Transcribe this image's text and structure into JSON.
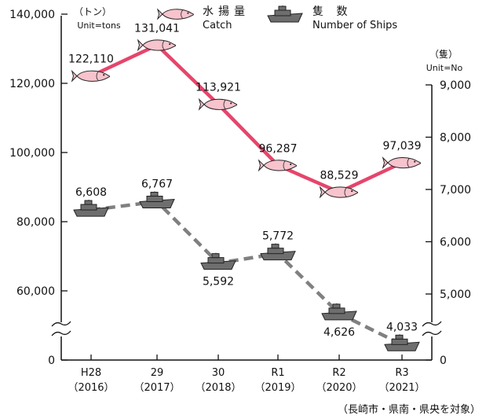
{
  "chart_data": {
    "type": "line",
    "categories": [
      {
        "line1": "H28",
        "line2": "（2016）"
      },
      {
        "line1": "29",
        "line2": "（2017）"
      },
      {
        "line1": "30",
        "line2": "（2018）"
      },
      {
        "line1": "R1",
        "line2": "（2019）"
      },
      {
        "line1": "R2",
        "line2": "（2020）"
      },
      {
        "line1": "R3",
        "line2": "（2021）"
      }
    ],
    "series": [
      {
        "name": "水揚量",
        "name_en": "Catch",
        "axis": "left",
        "color": "#e6456b",
        "line_style": "solid",
        "marker": "fish-icon",
        "values": [
          122110,
          131041,
          113921,
          96287,
          88529,
          97039
        ],
        "labels": [
          "122,110",
          "131,041",
          "113,921",
          "96,287",
          "88,529",
          "97,039"
        ]
      },
      {
        "name": "隻 数",
        "name_en": "Number of Ships",
        "axis": "right",
        "color": "#808080",
        "line_style": "dashed",
        "marker": "ship-icon",
        "values": [
          6608,
          6767,
          5592,
          5772,
          4626,
          4033
        ],
        "labels": [
          "6,608",
          "6,767",
          "5,592",
          "5,772",
          "4,626",
          "4,033"
        ]
      }
    ],
    "left_axis": {
      "unit_jp": "（トン）",
      "unit_en": "Unit=tons",
      "ticks": [
        0,
        60000,
        80000,
        100000,
        120000,
        140000
      ],
      "tick_labels": [
        "0",
        "60,000",
        "80,000",
        "100,000",
        "120,000",
        "140,000"
      ],
      "range": [
        40000,
        140000
      ],
      "broken": true
    },
    "right_axis": {
      "unit_jp": "（隻）",
      "unit_en": "Unit=No",
      "ticks": [
        0,
        5000,
        6000,
        7000,
        8000,
        9000
      ],
      "tick_labels": [
        "0",
        "5,000",
        "6,000",
        "7,000",
        "8,000",
        "9,000"
      ],
      "range": [
        3800,
        9000
      ],
      "broken": true
    },
    "legend_position": "top",
    "grid": false,
    "footnote": "（長崎市・県南・県央を対象）"
  }
}
